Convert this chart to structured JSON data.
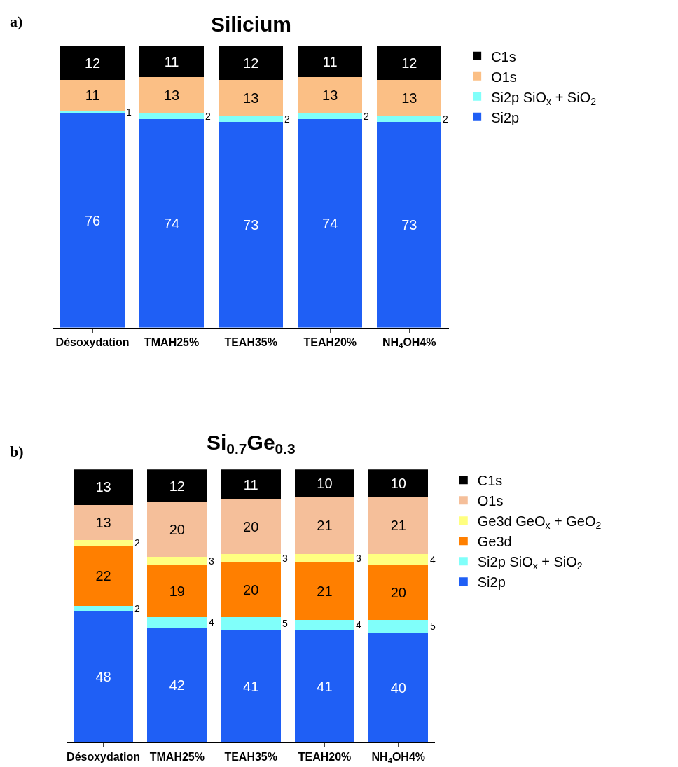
{
  "chart_data": [
    {
      "type": "bar",
      "title": "Silicium",
      "annotations": [
        "a)"
      ],
      "categories": [
        "Désoxydation",
        "TMAH25%",
        "TEAH35%",
        "TEAH20%",
        "NH$_{4}$OH4%"
      ],
      "stacked": true,
      "data_labels": true,
      "ylim": [
        0,
        100
      ],
      "tick_labels": "x",
      "legend": "right",
      "series": [
        {
          "name": "Si2p",
          "color": "#1f5ff5",
          "values": [
            76,
            74,
            73,
            74,
            73
          ]
        },
        {
          "name": "Si2p SiO$_{x}$ + SiO$_{2}$",
          "color": "#80fffa",
          "values": [
            1,
            2,
            2,
            2,
            2
          ]
        },
        {
          "name": "O1s",
          "color": "#fbbf85",
          "values": [
            11,
            13,
            13,
            13,
            13
          ]
        },
        {
          "name": "C1s",
          "color": "#000000",
          "values": [
            12,
            11,
            12,
            11,
            12
          ]
        }
      ]
    },
    {
      "type": "bar",
      "title": "Si$_{0.7}$Ge$_{0.3}$",
      "annotations": [
        "b)"
      ],
      "categories": [
        "Désoxydation",
        "TMAH25%",
        "TEAH35%",
        "TEAH20%",
        "NH$_{4}$OH4%"
      ],
      "stacked": true,
      "data_labels": true,
      "ylim": [
        0,
        100
      ],
      "tick_labels": "x",
      "legend": "right",
      "series": [
        {
          "name": "Si2p",
          "color": "#1f5ff5",
          "values": [
            48,
            42,
            41,
            41,
            40
          ]
        },
        {
          "name": "Si2p SiO$_{x}$ + SiO$_{2}$",
          "color": "#80fffa",
          "values": [
            2,
            4,
            5,
            4,
            5
          ]
        },
        {
          "name": "Ge3d",
          "color": "#ff7f00",
          "values": [
            22,
            19,
            20,
            21,
            20
          ]
        },
        {
          "name": "Ge3d GeO$_{x}$ + GeO$_{2}$",
          "color": "#ffff80",
          "values": [
            2,
            3,
            3,
            3,
            4
          ]
        },
        {
          "name": "O1s",
          "color": "#f5bf9a",
          "values": [
            13,
            20,
            20,
            21,
            21
          ]
        },
        {
          "name": "C1s",
          "color": "#000000",
          "values": [
            13,
            12,
            11,
            10,
            10
          ]
        }
      ]
    }
  ]
}
